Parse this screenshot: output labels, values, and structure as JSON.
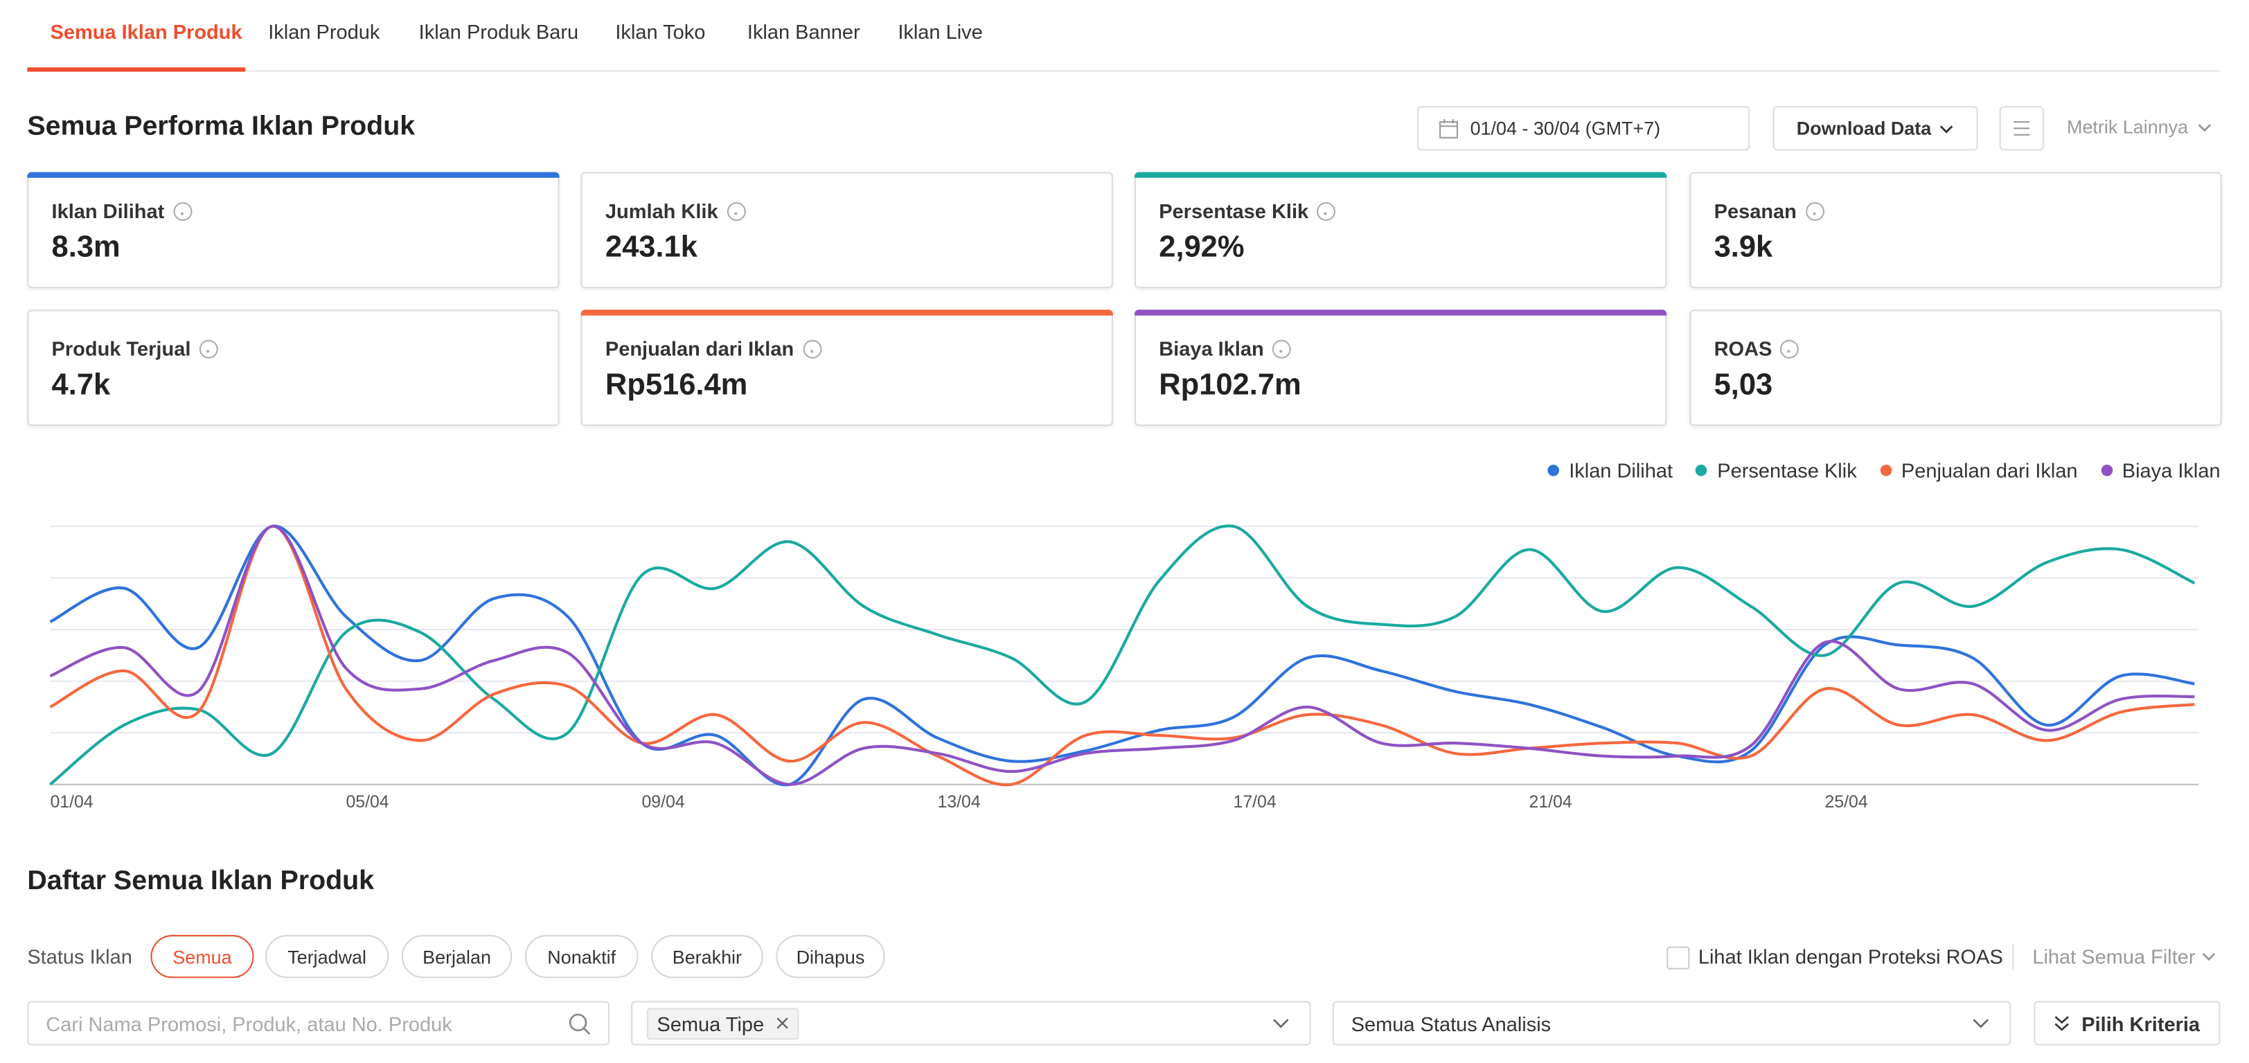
{
  "tabs": [
    "Semua Iklan Produk",
    "Iklan Produk",
    "Iklan Produk Baru",
    "Iklan Toko",
    "Iklan Banner",
    "Iklan Live"
  ],
  "section_title": "Semua Performa Iklan Produk",
  "date_range": "01/04 - 30/04 (GMT+7)",
  "download_button": "Download Data",
  "more_metrics": "Metrik Lainnya",
  "metrics": [
    {
      "label": "Iklan Dilihat",
      "value": "8.3m"
    },
    {
      "label": "Jumlah Klik",
      "value": "243.1k"
    },
    {
      "label": "Persentase Klik",
      "value": "2,92%"
    },
    {
      "label": "Pesanan",
      "value": "3.9k"
    },
    {
      "label": "Produk Terjual",
      "value": "4.7k"
    },
    {
      "label": "Penjualan dari Iklan",
      "value": "Rp516.4m"
    },
    {
      "label": "Biaya Iklan",
      "value": "Rp102.7m"
    },
    {
      "label": "ROAS",
      "value": "5,03"
    }
  ],
  "chart_data": {
    "type": "line",
    "categories": [
      "01/04",
      null,
      null,
      null,
      "05/04",
      null,
      null,
      null,
      "09/04",
      null,
      null,
      null,
      "13/04",
      null,
      null,
      null,
      "17/04",
      null,
      null,
      null,
      "21/04",
      null,
      null,
      null,
      "25/04",
      null,
      null,
      null,
      null,
      null
    ],
    "series": [
      {
        "name": "Iklan Dilihat",
        "color": "#2f72dc",
        "values": [
          63,
          76,
          53,
          100,
          65,
          48,
          72,
          65,
          16,
          19,
          0,
          33,
          18,
          9,
          13,
          21,
          26,
          49,
          44,
          36,
          31,
          22,
          11,
          13,
          54,
          54,
          49,
          23,
          42,
          39
        ]
      },
      {
        "name": "Persentase Klik",
        "color": "#1aa9a0",
        "values": [
          0,
          23,
          29,
          12,
          59,
          59,
          33,
          20,
          81,
          76,
          94,
          69,
          58,
          49,
          32,
          79,
          100,
          69,
          62,
          65,
          91,
          67,
          84,
          69,
          50,
          78,
          69,
          86,
          91,
          78
        ]
      },
      {
        "name": "Penjualan dari Iklan",
        "color": "#f5673f",
        "values": [
          30,
          44,
          28,
          100,
          37,
          17,
          35,
          38,
          16,
          27,
          9,
          24,
          11,
          0,
          19,
          19,
          18,
          27,
          23,
          12,
          14,
          16,
          16,
          11,
          37,
          23,
          27,
          17,
          28,
          31
        ]
      },
      {
        "name": "Biaya Iklan",
        "color": "#8e52c4",
        "values": [
          42,
          53,
          36,
          100,
          45,
          37,
          48,
          51,
          16,
          16,
          0,
          14,
          12,
          5,
          12,
          14,
          17,
          30,
          16,
          16,
          14,
          11,
          11,
          15,
          55,
          37,
          39,
          21,
          33,
          34
        ]
      }
    ],
    "ylim": [
      0,
      100
    ],
    "yticks": [
      0,
      20,
      40,
      60,
      80,
      100
    ],
    "grid": true
  },
  "list_title": "Daftar Semua Iklan Produk",
  "status_label": "Status Iklan",
  "status_filters": [
    "Semua",
    "Terjadwal",
    "Berjalan",
    "Nonaktif",
    "Berakhir",
    "Dihapus"
  ],
  "roas_checkbox": "Lihat Iklan dengan Proteksi ROAS",
  "see_all_filters": "Lihat Semua Filter",
  "search_placeholder": "Cari Nama Promosi, Produk, atau No. Produk",
  "type_tag": "Semua Tipe",
  "analysis_status": "Semua Status Analisis",
  "criteria_button": "Pilih Kriteria"
}
